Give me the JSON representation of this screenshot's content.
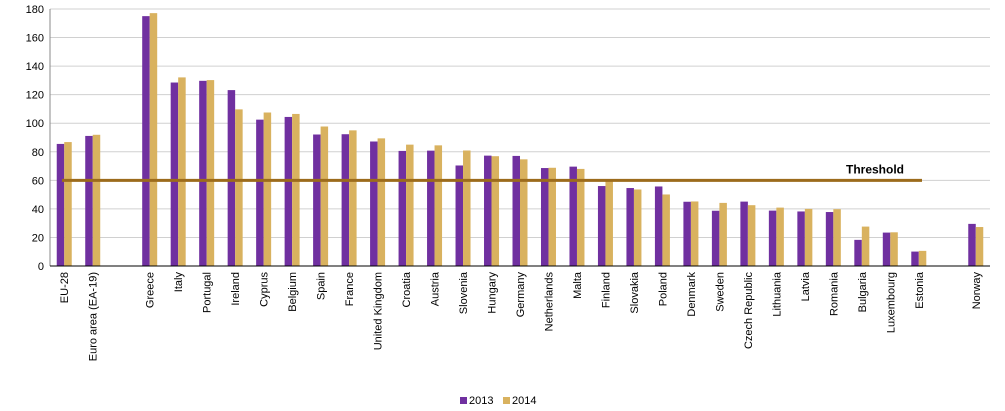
{
  "chart_data": {
    "type": "bar",
    "ylim": [
      0,
      180
    ],
    "ytick_step": 20,
    "grid": true,
    "legend_position": "bottom-center",
    "categories": [
      "EU-28",
      "Euro area (EA-19)",
      "",
      "Greece",
      "Italy",
      "Portugal",
      "Ireland",
      "Cyprus",
      "Belgium",
      "Spain",
      "France",
      "United Kingdom",
      "Croatia",
      "Austria",
      "Slovenia",
      "Hungary",
      "Germany",
      "Netherlands",
      "Malta",
      "Finland",
      "Slovakia",
      "Poland",
      "Denmark",
      "Sweden",
      "Czech Republic",
      "Lithuania",
      "Latvia",
      "Romania",
      "Bulgaria",
      "Luxembourg",
      "Estonia",
      "",
      "Norway"
    ],
    "series": [
      {
        "name": "2013",
        "color": "#7030a0",
        "values": [
          85.5,
          91.1,
          null,
          175.0,
          128.5,
          129.7,
          123.2,
          102.5,
          104.4,
          92.1,
          92.3,
          87.2,
          80.6,
          80.8,
          70.4,
          77.3,
          77.1,
          68.6,
          69.6,
          56.0,
          54.6,
          55.7,
          45.0,
          38.7,
          45.1,
          38.8,
          38.2,
          37.8,
          18.3,
          23.4,
          10.1,
          null,
          29.5
        ]
      },
      {
        "name": "2014",
        "color": "#d9b25f",
        "values": [
          86.8,
          91.9,
          null,
          177.1,
          132.1,
          130.2,
          109.7,
          107.5,
          106.5,
          97.7,
          95.0,
          89.4,
          85.0,
          84.5,
          80.9,
          76.9,
          74.7,
          68.8,
          68.0,
          59.3,
          53.6,
          50.1,
          45.2,
          44.2,
          42.6,
          40.9,
          40.0,
          39.8,
          27.6,
          23.6,
          10.6,
          null,
          27.3
        ]
      }
    ],
    "threshold": {
      "value": 60,
      "label": "Threshold",
      "color": "#9c6b1c"
    }
  }
}
